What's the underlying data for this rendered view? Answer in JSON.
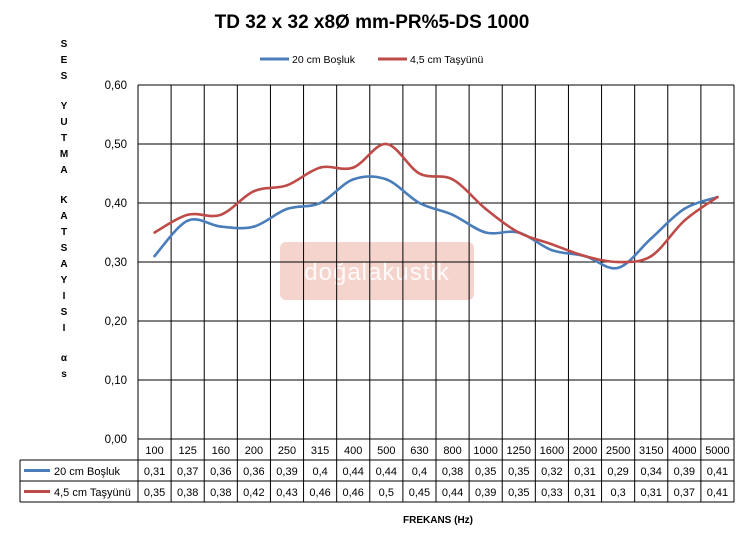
{
  "chart_data": {
    "type": "line",
    "title": "TD 32 x 32 x8Ø mm-PR%5-DS 1000",
    "ylabel": "SES YUTMA KATSAYISI αs",
    "xlabel": "FREKANS (Hz)",
    "categories": [
      "100",
      "125",
      "160",
      "200",
      "250",
      "315",
      "400",
      "500",
      "630",
      "800",
      "1000",
      "1250",
      "1600",
      "2000",
      "2500",
      "3150",
      "4000",
      "5000"
    ],
    "ylim": [
      0,
      0.6
    ],
    "yticks": [
      0,
      0.1,
      0.2,
      0.3,
      0.4,
      0.5,
      0.6
    ],
    "ytick_labels": [
      "0,00",
      "0,10",
      "0,20",
      "0,30",
      "0,40",
      "0,50",
      "0,60"
    ],
    "grid": true,
    "legend_position": "top",
    "series": [
      {
        "name": "20 cm Boşluk",
        "color": "#4a7ebb",
        "values": [
          0.31,
          0.37,
          0.36,
          0.36,
          0.39,
          0.4,
          0.44,
          0.44,
          0.4,
          0.38,
          0.35,
          0.35,
          0.32,
          0.31,
          0.29,
          0.34,
          0.39,
          0.41
        ],
        "labels": [
          "0,31",
          "0,37",
          "0,36",
          "0,36",
          "0,39",
          "0,4",
          "0,44",
          "0,44",
          "0,4",
          "0,38",
          "0,35",
          "0,35",
          "0,32",
          "0,31",
          "0,29",
          "0,34",
          "0,39",
          "0,41"
        ]
      },
      {
        "name": "4,5 cm Taşyünü",
        "color": "#be4b48",
        "values": [
          0.35,
          0.38,
          0.38,
          0.42,
          0.43,
          0.46,
          0.46,
          0.5,
          0.45,
          0.44,
          0.39,
          0.35,
          0.33,
          0.31,
          0.3,
          0.31,
          0.37,
          0.41
        ],
        "labels": [
          "0,35",
          "0,38",
          "0,38",
          "0,42",
          "0,43",
          "0,46",
          "0,46",
          "0,5",
          "0,45",
          "0,44",
          "0,39",
          "0,35",
          "0,33",
          "0,31",
          "0,3",
          "0,31",
          "0,37",
          "0,41"
        ]
      }
    ]
  },
  "watermark": "doğalakustik"
}
